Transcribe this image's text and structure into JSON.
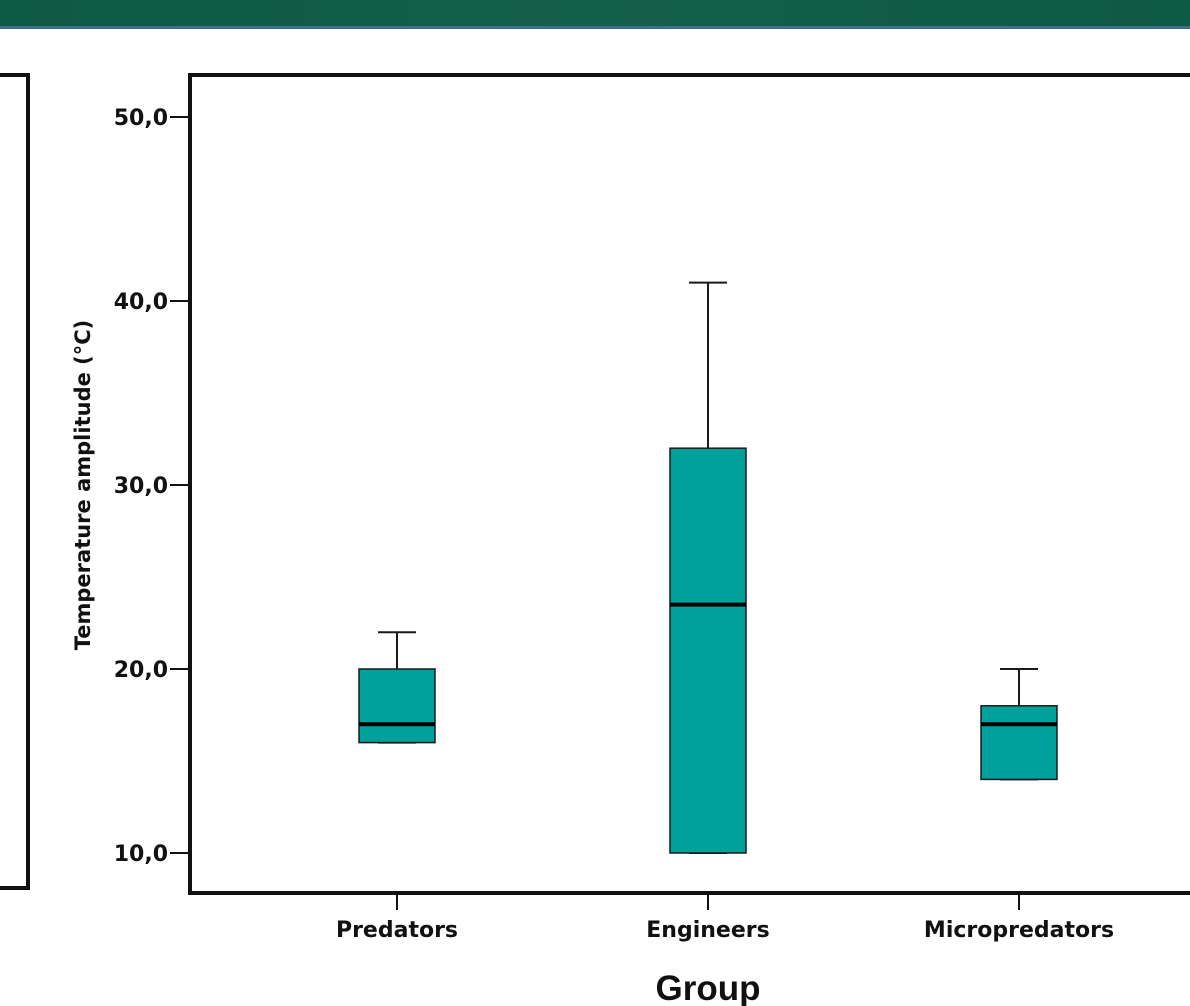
{
  "colors": {
    "banner": "#0f5a44",
    "box_fill": "#00a19b",
    "box_stroke": "#1a1a1a"
  },
  "chart_data": {
    "type": "box",
    "xlabel": "Group",
    "ylabel": "Temperature amplitude (°C)",
    "ylim": [
      8,
      52
    ],
    "yticks": [
      {
        "value": 10,
        "label": "10,0"
      },
      {
        "value": 20,
        "label": "20,0"
      },
      {
        "value": 30,
        "label": "30,0"
      },
      {
        "value": 40,
        "label": "40,0"
      },
      {
        "value": 50,
        "label": "50,0"
      }
    ],
    "categories": [
      "Predators",
      "Engineers",
      "Micropredators"
    ],
    "boxes": [
      {
        "category": "Predators",
        "whisker_low": 16,
        "q1": 16,
        "median": 17,
        "q3": 20,
        "whisker_high": 22
      },
      {
        "category": "Engineers",
        "whisker_low": 10,
        "q1": 10,
        "median": 23.5,
        "q3": 32,
        "whisker_high": 41
      },
      {
        "category": "Micropredators",
        "whisker_low": 14,
        "q1": 14,
        "median": 17,
        "q3": 18,
        "whisker_high": 20
      }
    ],
    "grid": false,
    "legend": "none"
  }
}
